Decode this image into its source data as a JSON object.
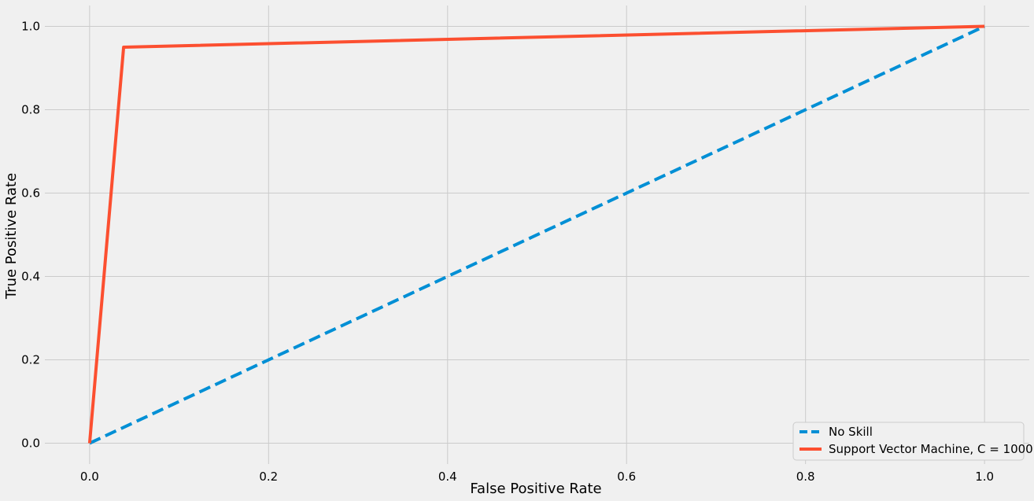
{
  "chart_data": {
    "type": "line",
    "title": "",
    "xlabel": "False Positive Rate",
    "ylabel": "True Positive Rate",
    "xlim": [
      -0.05,
      1.05
    ],
    "ylim": [
      -0.05,
      1.05
    ],
    "xticks": [
      "0.0",
      "0.2",
      "0.4",
      "0.6",
      "0.8",
      "1.0"
    ],
    "yticks": [
      "0.0",
      "0.2",
      "0.4",
      "0.6",
      "0.8",
      "1.0"
    ],
    "grid": true,
    "legend_position": "lower-right",
    "series": [
      {
        "name": "No Skill",
        "style": "dashed",
        "color": "#008fd5",
        "x": [
          0.0,
          1.0
        ],
        "y": [
          0.0,
          1.0
        ]
      },
      {
        "name": "Support Vector Machine, C = 1000",
        "style": "solid",
        "color": "#fc4f30",
        "x": [
          0.0,
          0.038,
          1.0
        ],
        "y": [
          0.0,
          0.95,
          1.0
        ]
      }
    ]
  }
}
